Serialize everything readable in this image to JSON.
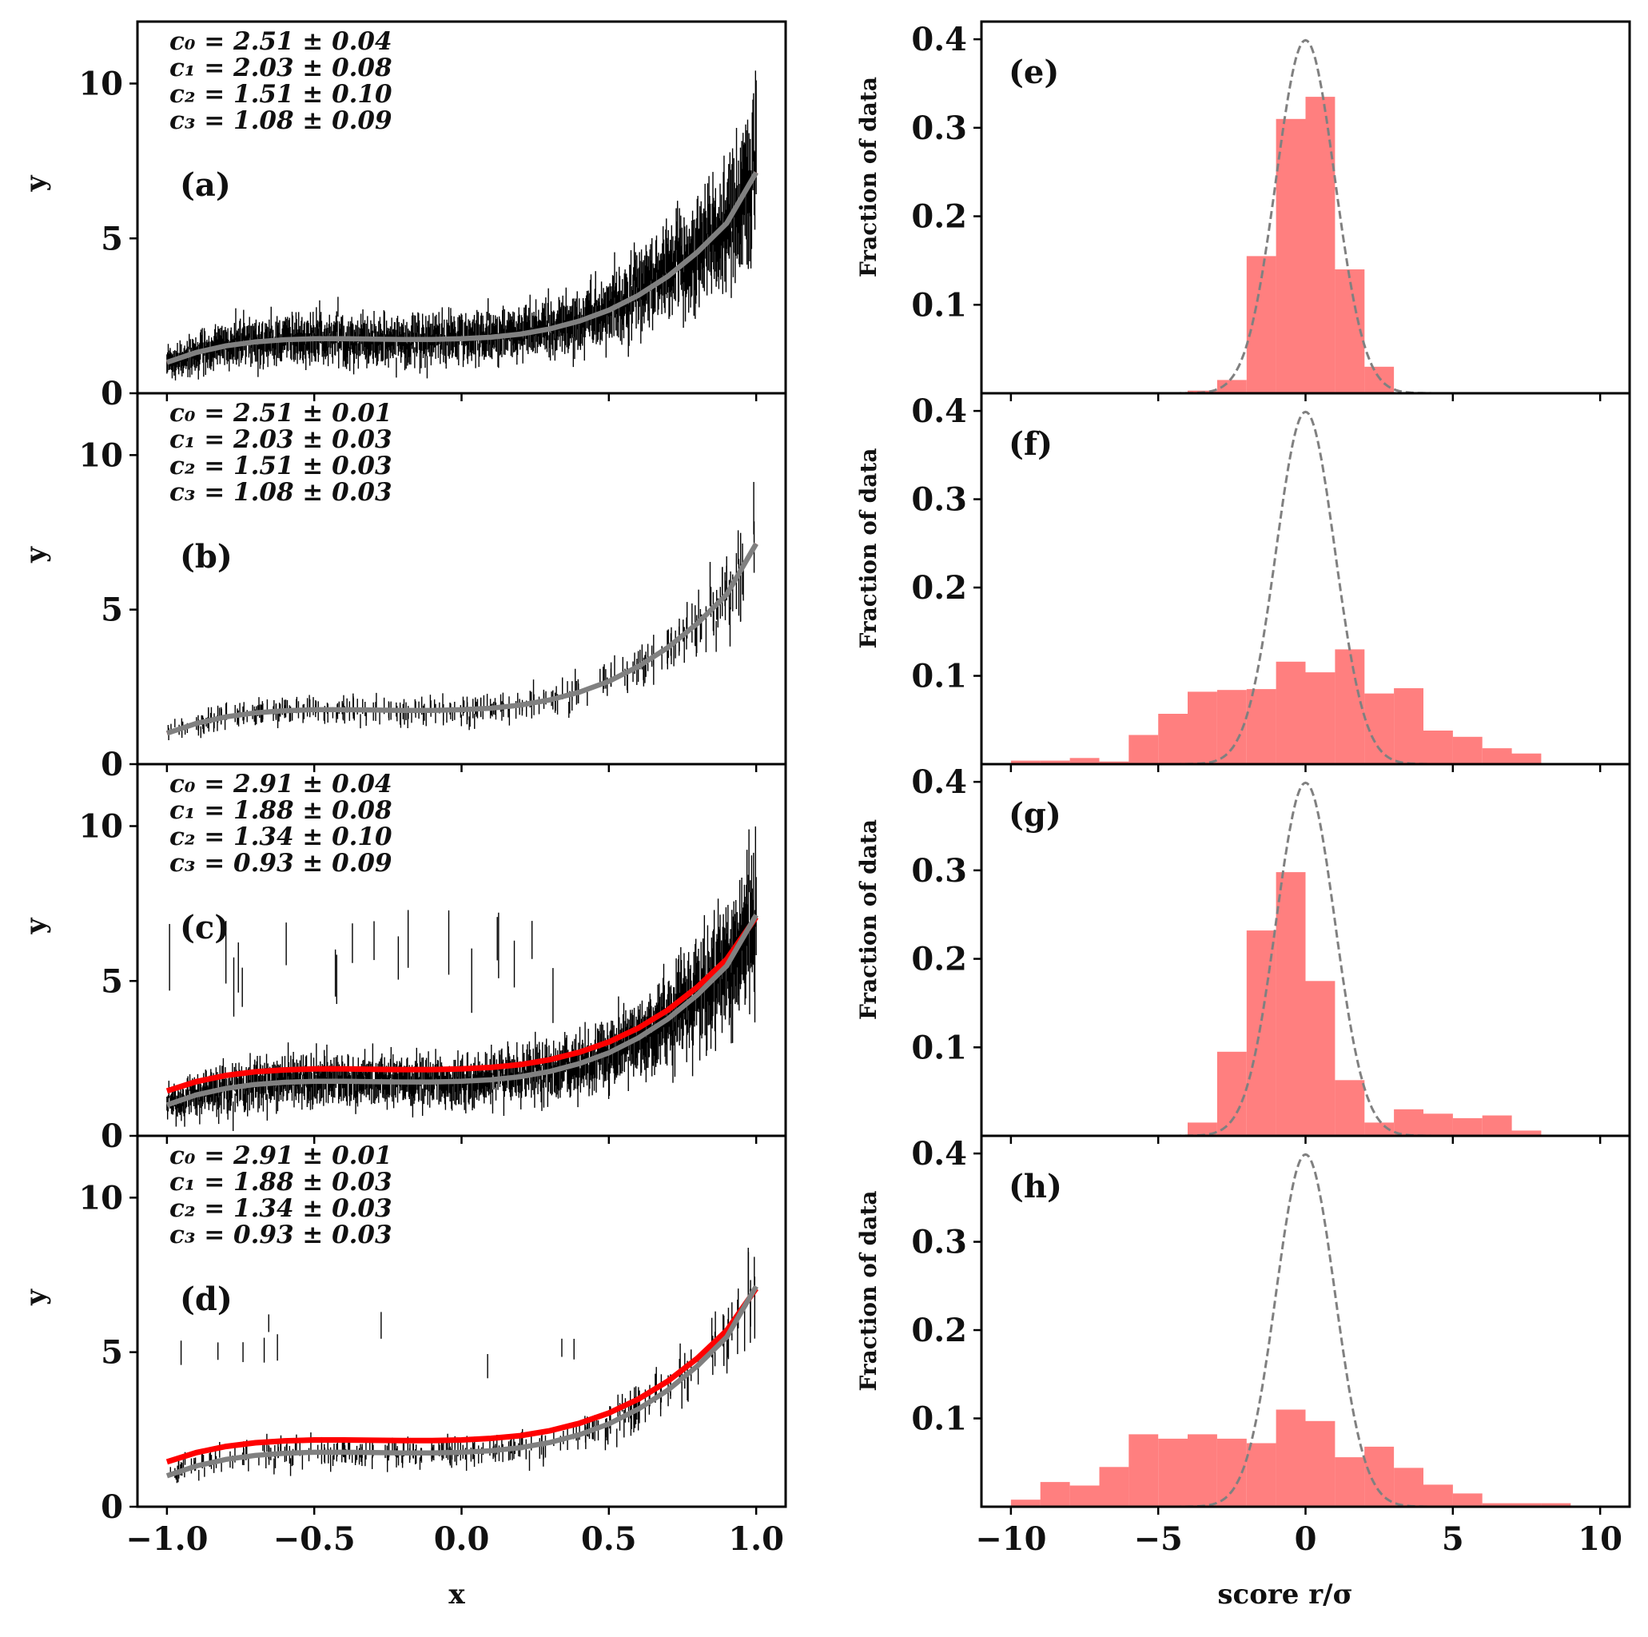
{
  "chart_data": [
    {
      "type": "scatter",
      "panel_label": "(a)",
      "title": "",
      "xlabel": "",
      "ylabel": "y",
      "xlim": [
        -1.1,
        1.1
      ],
      "ylim": [
        0,
        12
      ],
      "xticks": [
        -1.0,
        -0.5,
        0.0,
        0.5,
        1.0
      ],
      "xtick_labels": [
        "",
        "",
        "",
        "",
        ""
      ],
      "yticks": [
        0,
        5,
        10
      ],
      "ytick_labels": [
        "0",
        "5",
        "10"
      ],
      "annotations": [
        "c₀ = 2.51 ± 0.04",
        "c₁ = 2.03 ± 0.08",
        "c₂ = 1.51 ± 0.10",
        "c₃ = 1.08 ± 0.09"
      ],
      "data_style": "dense error bars, 1000 points, x from -1 to 1",
      "fit_curve": {
        "x": [
          -1.0,
          -0.9,
          -0.8,
          -0.7,
          -0.6,
          -0.5,
          -0.4,
          -0.3,
          -0.2,
          -0.1,
          0.0,
          0.1,
          0.2,
          0.3,
          0.4,
          0.5,
          0.6,
          0.7,
          0.8,
          0.9,
          1.0
        ],
        "y": [
          1.0,
          1.32,
          1.53,
          1.66,
          1.73,
          1.76,
          1.76,
          1.75,
          1.74,
          1.74,
          1.76,
          1.81,
          1.91,
          2.08,
          2.33,
          2.68,
          3.16,
          3.77,
          4.55,
          5.49,
          7.13
        ]
      },
      "true_curve": {
        "x": [
          -1.0,
          -0.9,
          -0.8,
          -0.7,
          -0.6,
          -0.5,
          -0.4,
          -0.3,
          -0.2,
          -0.1,
          0.0,
          0.1,
          0.2,
          0.3,
          0.4,
          0.5,
          0.6,
          0.7,
          0.8,
          0.9,
          1.0
        ],
        "y": [
          1.0,
          1.32,
          1.53,
          1.66,
          1.73,
          1.76,
          1.76,
          1.75,
          1.74,
          1.74,
          1.76,
          1.81,
          1.91,
          2.08,
          2.33,
          2.68,
          3.16,
          3.77,
          4.55,
          5.49,
          7.13
        ]
      },
      "colors": {
        "fit": "#ff0000",
        "true": "#808080",
        "data": "#000000"
      }
    },
    {
      "type": "scatter",
      "panel_label": "(b)",
      "title": "",
      "xlabel": "",
      "ylabel": "y",
      "xlim": [
        -1.1,
        1.1
      ],
      "ylim": [
        0,
        12
      ],
      "xticks": [
        -1.0,
        -0.5,
        0.0,
        0.5,
        1.0
      ],
      "xtick_labels": [
        "",
        "",
        "",
        "",
        ""
      ],
      "yticks": [
        0,
        5,
        10
      ],
      "ytick_labels": [
        "0",
        "5",
        "10"
      ],
      "annotations": [
        "c₀ = 2.51 ± 0.01",
        "c₁ = 2.03 ± 0.03",
        "c₂ = 1.51 ± 0.03",
        "c₃ = 1.08 ± 0.03"
      ],
      "data_style": "sparse error bars, about 300 points",
      "fit_curve": {
        "x": [
          -1.0,
          -0.9,
          -0.8,
          -0.7,
          -0.6,
          -0.5,
          -0.4,
          -0.3,
          -0.2,
          -0.1,
          0.0,
          0.1,
          0.2,
          0.3,
          0.4,
          0.5,
          0.6,
          0.7,
          0.8,
          0.9,
          1.0
        ],
        "y": [
          1.0,
          1.32,
          1.53,
          1.66,
          1.73,
          1.76,
          1.76,
          1.75,
          1.74,
          1.74,
          1.76,
          1.81,
          1.91,
          2.08,
          2.33,
          2.68,
          3.16,
          3.77,
          4.55,
          5.49,
          7.13
        ]
      },
      "true_curve": {
        "x": [
          -1.0,
          -0.9,
          -0.8,
          -0.7,
          -0.6,
          -0.5,
          -0.4,
          -0.3,
          -0.2,
          -0.1,
          0.0,
          0.1,
          0.2,
          0.3,
          0.4,
          0.5,
          0.6,
          0.7,
          0.8,
          0.9,
          1.0
        ],
        "y": [
          1.0,
          1.32,
          1.53,
          1.66,
          1.73,
          1.76,
          1.76,
          1.75,
          1.74,
          1.74,
          1.76,
          1.81,
          1.91,
          2.08,
          2.33,
          2.68,
          3.16,
          3.77,
          4.55,
          5.49,
          7.13
        ]
      },
      "colors": {
        "fit": "#ff0000",
        "true": "#808080",
        "data": "#000000"
      }
    },
    {
      "type": "scatter",
      "panel_label": "(c)",
      "title": "",
      "xlabel": "",
      "ylabel": "y",
      "xlim": [
        -1.1,
        1.1
      ],
      "ylim": [
        0,
        12
      ],
      "xticks": [
        -1.0,
        -0.5,
        0.0,
        0.5,
        1.0
      ],
      "xtick_labels": [
        "",
        "",
        "",
        "",
        ""
      ],
      "yticks": [
        0,
        5,
        10
      ],
      "ytick_labels": [
        "0",
        "5",
        "10"
      ],
      "annotations": [
        "c₀ = 2.91 ± 0.04",
        "c₁ = 1.88 ± 0.08",
        "c₂ = 1.34 ± 0.10",
        "c₃ = 0.93 ± 0.09"
      ],
      "data_style": "dense error bars with outliers between 4 and 7",
      "fit_curve": {
        "x": [
          -1.0,
          -0.9,
          -0.8,
          -0.7,
          -0.6,
          -0.5,
          -0.4,
          -0.3,
          -0.2,
          -0.1,
          0.0,
          0.1,
          0.2,
          0.3,
          0.4,
          0.5,
          0.6,
          0.7,
          0.8,
          0.9,
          1.0
        ],
        "y": [
          1.45,
          1.75,
          1.95,
          2.07,
          2.13,
          2.16,
          2.16,
          2.15,
          2.14,
          2.14,
          2.16,
          2.21,
          2.3,
          2.46,
          2.7,
          3.03,
          3.48,
          4.06,
          4.8,
          5.7,
          7.06
        ]
      },
      "true_curve": {
        "x": [
          -1.0,
          -0.9,
          -0.8,
          -0.7,
          -0.6,
          -0.5,
          -0.4,
          -0.3,
          -0.2,
          -0.1,
          0.0,
          0.1,
          0.2,
          0.3,
          0.4,
          0.5,
          0.6,
          0.7,
          0.8,
          0.9,
          1.0
        ],
        "y": [
          1.0,
          1.32,
          1.53,
          1.66,
          1.73,
          1.76,
          1.76,
          1.75,
          1.74,
          1.74,
          1.76,
          1.81,
          1.91,
          2.08,
          2.33,
          2.68,
          3.16,
          3.77,
          4.55,
          5.49,
          7.13
        ]
      },
      "colors": {
        "fit": "#ff0000",
        "true": "#808080",
        "data": "#000000"
      }
    },
    {
      "type": "scatter",
      "panel_label": "(d)",
      "title": "",
      "xlabel": "x",
      "ylabel": "y",
      "xlim": [
        -1.1,
        1.1
      ],
      "ylim": [
        0,
        12
      ],
      "xticks": [
        -1.0,
        -0.5,
        0.0,
        0.5,
        1.0
      ],
      "xtick_labels": [
        "−1.0",
        "−0.5",
        "0.0",
        "0.5",
        "1.0"
      ],
      "yticks": [
        0,
        5,
        10
      ],
      "ytick_labels": [
        "0",
        "5",
        "10"
      ],
      "annotations": [
        "c₀ = 2.91 ± 0.01",
        "c₁ = 1.88 ± 0.03",
        "c₂ = 1.34 ± 0.03",
        "c₃ = 0.93 ± 0.03"
      ],
      "data_style": "sparse error bars with outliers",
      "fit_curve": {
        "x": [
          -1.0,
          -0.9,
          -0.8,
          -0.7,
          -0.6,
          -0.5,
          -0.4,
          -0.3,
          -0.2,
          -0.1,
          0.0,
          0.1,
          0.2,
          0.3,
          0.4,
          0.5,
          0.6,
          0.7,
          0.8,
          0.9,
          1.0
        ],
        "y": [
          1.45,
          1.75,
          1.95,
          2.07,
          2.13,
          2.16,
          2.16,
          2.15,
          2.14,
          2.14,
          2.16,
          2.21,
          2.3,
          2.46,
          2.7,
          3.03,
          3.48,
          4.06,
          4.8,
          5.7,
          7.06
        ]
      },
      "true_curve": {
        "x": [
          -1.0,
          -0.9,
          -0.8,
          -0.7,
          -0.6,
          -0.5,
          -0.4,
          -0.3,
          -0.2,
          -0.1,
          0.0,
          0.1,
          0.2,
          0.3,
          0.4,
          0.5,
          0.6,
          0.7,
          0.8,
          0.9,
          1.0
        ],
        "y": [
          1.0,
          1.32,
          1.53,
          1.66,
          1.73,
          1.76,
          1.76,
          1.75,
          1.74,
          1.74,
          1.76,
          1.81,
          1.91,
          2.08,
          2.33,
          2.68,
          3.16,
          3.77,
          4.55,
          5.49,
          7.13
        ]
      },
      "colors": {
        "fit": "#ff0000",
        "true": "#808080",
        "data": "#000000"
      }
    },
    {
      "type": "bar",
      "subtype": "histogram",
      "panel_label": "(e)",
      "title": "",
      "xlabel": "",
      "ylabel": "Fraction of data",
      "xlim": [
        -11,
        11
      ],
      "ylim": [
        0,
        0.42
      ],
      "xticks": [
        -10,
        -5,
        0,
        5,
        10
      ],
      "xtick_labels": [
        "",
        "",
        "",
        "",
        ""
      ],
      "yticks": [
        0.1,
        0.2,
        0.3,
        0.4
      ],
      "ytick_labels": [
        "0.1",
        "0.2",
        "0.3",
        "0.4"
      ],
      "bin_edges": [
        -4,
        -3,
        -2,
        -1,
        0,
        1,
        2,
        3
      ],
      "values": [
        0.003,
        0.015,
        0.155,
        0.31,
        0.335,
        0.14,
        0.03
      ],
      "reference_curve": "standard normal pdf, dashed gray",
      "colors": {
        "bars": "#ff7f7f",
        "reference": "#808080"
      }
    },
    {
      "type": "bar",
      "subtype": "histogram",
      "panel_label": "(f)",
      "title": "",
      "xlabel": "",
      "ylabel": "Fraction of data",
      "xlim": [
        -11,
        11
      ],
      "ylim": [
        0,
        0.42
      ],
      "xticks": [
        -10,
        -5,
        0,
        5,
        10
      ],
      "xtick_labels": [
        "",
        "",
        "",
        "",
        ""
      ],
      "yticks": [
        0.1,
        0.2,
        0.3,
        0.4
      ],
      "ytick_labels": [
        "0.1",
        "0.2",
        "0.3",
        "0.4"
      ],
      "bin_edges": [
        -10,
        -9,
        -8,
        -7,
        -6,
        -5,
        -4,
        -3,
        -2,
        -1,
        0,
        1,
        2,
        3,
        4,
        5,
        6,
        7,
        8
      ],
      "values": [
        0.004,
        0.004,
        0.007,
        0.003,
        0.033,
        0.057,
        0.082,
        0.084,
        0.085,
        0.116,
        0.104,
        0.13,
        0.08,
        0.086,
        0.038,
        0.031,
        0.018,
        0.012
      ],
      "reference_curve": "standard normal pdf, dashed gray",
      "colors": {
        "bars": "#ff7f7f",
        "reference": "#808080"
      }
    },
    {
      "type": "bar",
      "subtype": "histogram",
      "panel_label": "(g)",
      "title": "",
      "xlabel": "",
      "ylabel": "Fraction of data",
      "xlim": [
        -11,
        11
      ],
      "ylim": [
        0,
        0.42
      ],
      "xticks": [
        -10,
        -5,
        0,
        5,
        10
      ],
      "xtick_labels": [
        "",
        "",
        "",
        "",
        ""
      ],
      "yticks": [
        0.1,
        0.2,
        0.3,
        0.4
      ],
      "ytick_labels": [
        "0.1",
        "0.2",
        "0.3",
        "0.4"
      ],
      "bin_edges": [
        -4,
        -3,
        -2,
        -1,
        0,
        1,
        2,
        3,
        4,
        5,
        6,
        7,
        8
      ],
      "values": [
        0.015,
        0.095,
        0.232,
        0.298,
        0.175,
        0.063,
        0.015,
        0.03,
        0.025,
        0.02,
        0.023,
        0.006
      ],
      "reference_curve": "standard normal pdf, dashed gray",
      "colors": {
        "bars": "#ff7f7f",
        "reference": "#808080"
      }
    },
    {
      "type": "bar",
      "subtype": "histogram",
      "panel_label": "(h)",
      "title": "",
      "xlabel": "score r/σ",
      "ylabel": "Fraction of data",
      "xlim": [
        -11,
        11
      ],
      "ylim": [
        0,
        0.42
      ],
      "xticks": [
        -10,
        -5,
        0,
        5,
        10
      ],
      "xtick_labels": [
        "−10",
        "−5",
        "0",
        "5",
        "10"
      ],
      "yticks": [
        0.1,
        0.2,
        0.3,
        0.4
      ],
      "ytick_labels": [
        "0.1",
        "0.2",
        "0.3",
        "0.4"
      ],
      "bin_edges": [
        -10,
        -9,
        -8,
        -7,
        -6,
        -5,
        -4,
        -3,
        -2,
        -1,
        0,
        1,
        2,
        3,
        4,
        5,
        6,
        7,
        8,
        9
      ],
      "values": [
        0.008,
        0.028,
        0.024,
        0.045,
        0.082,
        0.077,
        0.082,
        0.077,
        0.072,
        0.11,
        0.097,
        0.056,
        0.068,
        0.044,
        0.025,
        0.015,
        0.004,
        0.004,
        0.004
      ],
      "reference_curve": "standard normal pdf, dashed gray",
      "colors": {
        "bars": "#ff7f7f",
        "reference": "#808080"
      }
    }
  ]
}
